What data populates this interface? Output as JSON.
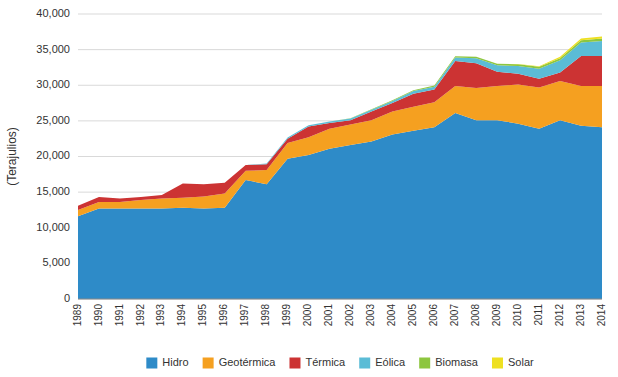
{
  "chart_data": {
    "type": "area",
    "stacked": true,
    "y_label": "(Terajulios)",
    "x": [
      1989,
      1990,
      1991,
      1992,
      1993,
      1994,
      1995,
      1996,
      1997,
      1998,
      1999,
      2000,
      2001,
      2002,
      2003,
      2004,
      2005,
      2006,
      2007,
      2008,
      2009,
      2010,
      2011,
      2012,
      2013,
      2014
    ],
    "xlim": [
      1989,
      2014
    ],
    "xticks": [
      1989,
      1990,
      1991,
      1992,
      1993,
      1994,
      1995,
      1996,
      1997,
      1998,
      1999,
      2000,
      2001,
      2002,
      2003,
      2004,
      2005,
      2006,
      2007,
      2008,
      2009,
      2010,
      2011,
      2012,
      2013,
      2014
    ],
    "ylim": [
      0,
      40000
    ],
    "yticks": [
      0,
      {
        "value": 5000,
        "label": "5,000"
      },
      {
        "value": 10000,
        "label": "10,000"
      },
      {
        "value": 15000,
        "label": "15,000"
      },
      {
        "value": 20000,
        "label": "20,000"
      },
      {
        "value": 25000,
        "label": "25,000"
      },
      {
        "value": 30000,
        "label": "30,000"
      },
      {
        "value": 35000,
        "label": "35,000"
      },
      {
        "value": 40000,
        "label": "40,000"
      }
    ],
    "grid": true,
    "legend": "bottom",
    "series": [
      {
        "name": "Hidro",
        "color": "#2E8BC8",
        "values": [
          11600,
          12700,
          12700,
          12700,
          12700,
          12800,
          12700,
          12800,
          16700,
          16100,
          19700,
          20200,
          21100,
          21600,
          22100,
          23100,
          23600,
          24100,
          26100,
          25100,
          25100,
          24600,
          23900,
          25100,
          24300,
          24100
        ]
      },
      {
        "name": "Geotérmica",
        "color": "#F5A020",
        "values": [
          900,
          900,
          900,
          1200,
          1400,
          1400,
          1700,
          2000,
          1300,
          2000,
          2200,
          2500,
          2800,
          2900,
          3000,
          3200,
          3400,
          3500,
          3800,
          4500,
          4800,
          5500,
          5800,
          5500,
          5600,
          5800
        ]
      },
      {
        "name": "Térmica",
        "color": "#CC3333",
        "values": [
          600,
          700,
          500,
          400,
          500,
          2000,
          1700,
          1500,
          800,
          800,
          600,
          1500,
          800,
          600,
          1200,
          1200,
          1800,
          1800,
          3500,
          3500,
          2000,
          1500,
          1200,
          1200,
          4200,
          4200
        ]
      },
      {
        "name": "Eólica",
        "color": "#5BBCD6",
        "values": [
          0,
          0,
          0,
          0,
          0,
          0,
          0,
          0,
          0,
          120,
          160,
          180,
          200,
          220,
          250,
          300,
          380,
          400,
          500,
          700,
          900,
          1100,
          1400,
          1700,
          1900,
          2100
        ]
      },
      {
        "name": "Biomasa",
        "color": "#8DC63F",
        "values": [
          0,
          0,
          0,
          0,
          0,
          0,
          0,
          0,
          0,
          0,
          0,
          0,
          0,
          50,
          80,
          100,
          120,
          150,
          180,
          200,
          220,
          250,
          280,
          300,
          320,
          350
        ]
      },
      {
        "name": "Solar",
        "color": "#EEE020",
        "values": [
          0,
          0,
          0,
          0,
          0,
          0,
          0,
          0,
          0,
          0,
          0,
          0,
          0,
          0,
          0,
          0,
          0,
          0,
          0,
          0,
          0,
          30,
          100,
          200,
          250,
          300
        ]
      }
    ]
  }
}
